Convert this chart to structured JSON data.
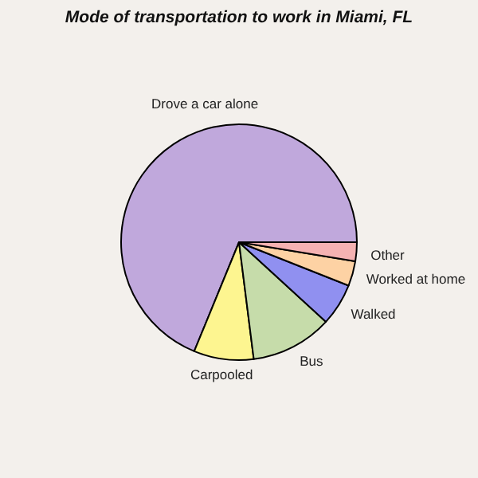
{
  "chart_data": {
    "type": "pie",
    "title": "Mode of transportation to work in Miami, FL",
    "categories": [
      "Drove a car alone",
      "Carpooled",
      "Bus",
      "Walked",
      "Worked at home",
      "Other"
    ],
    "values": [
      68.8,
      8.2,
      11.2,
      5.8,
      3.4,
      2.6
    ],
    "colors": [
      "#c0a8dc",
      "#fdf590",
      "#c6dcaa",
      "#9090f0",
      "#fdd2a4",
      "#f5b2b2"
    ]
  }
}
